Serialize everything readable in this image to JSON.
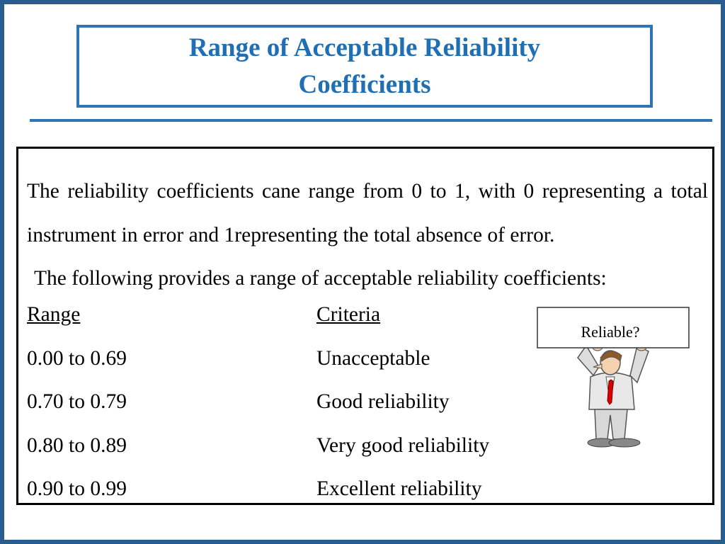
{
  "header": {
    "title": "Range of Acceptable Reliability Coefficients"
  },
  "body": {
    "intro": "The reliability coefficients cane range from 0 to 1, with 0 representing a total instrument in error and 1representing the total absence of error.",
    "lead": "The following provides a range of acceptable reliability coefficients:"
  },
  "table": {
    "headers": [
      "Range",
      "Criteria"
    ],
    "rows": [
      [
        "0.00 to 0.69",
        "Unacceptable"
      ],
      [
        "0.70 to 0.79",
        "Good reliability"
      ],
      [
        "0.80 to 0.89",
        "Very good reliability"
      ],
      [
        "0.90 to 0.99",
        "Excellent reliability"
      ]
    ]
  },
  "illustration": {
    "sign": "Reliable?"
  }
}
